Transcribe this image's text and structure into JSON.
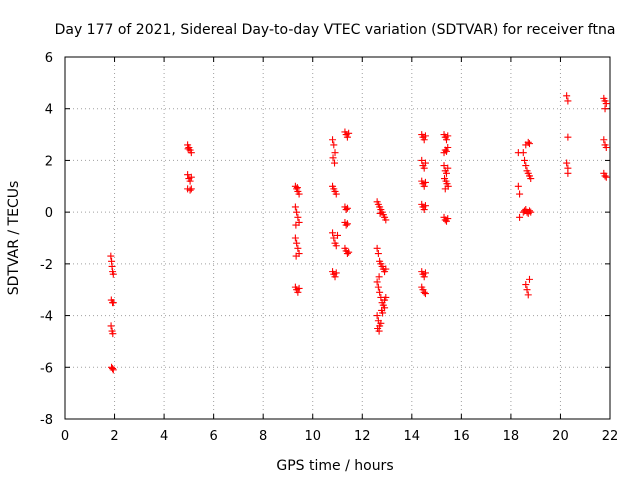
{
  "chart_data": {
    "type": "scatter",
    "title": "Day 177 of 2021, Sidereal Day-to-day VTEC variation (SDTVAR) for receiver ftna",
    "xlabel": "GPS time / hours",
    "ylabel": "SDTVAR / TECUs",
    "xlim": [
      0,
      22
    ],
    "ylim": [
      -8,
      6
    ],
    "xticks": [
      0,
      2,
      4,
      6,
      8,
      10,
      12,
      14,
      16,
      18,
      20,
      22
    ],
    "yticks": [
      -8,
      -6,
      -4,
      -2,
      0,
      2,
      4,
      6
    ],
    "grid": true,
    "marker": "plus",
    "series": [
      {
        "name": "SDTVAR",
        "color": "#ff0000",
        "points": [
          [
            1.85,
            -1.7
          ],
          [
            1.88,
            -1.9
          ],
          [
            1.9,
            -2.1
          ],
          [
            1.92,
            -2.3
          ],
          [
            1.95,
            -2.4
          ],
          [
            1.87,
            -3.4
          ],
          [
            1.92,
            -3.5
          ],
          [
            1.95,
            -3.5
          ],
          [
            1.86,
            -4.4
          ],
          [
            1.9,
            -4.6
          ],
          [
            1.93,
            -4.7
          ],
          [
            1.88,
            -6.0
          ],
          [
            1.92,
            -6.05
          ],
          [
            1.95,
            -6.1
          ],
          [
            4.95,
            2.6
          ],
          [
            5.0,
            2.5
          ],
          [
            5.05,
            2.4
          ],
          [
            5.1,
            2.3
          ],
          [
            4.97,
            2.45
          ],
          [
            4.95,
            1.45
          ],
          [
            5.0,
            1.3
          ],
          [
            5.05,
            1.2
          ],
          [
            5.1,
            1.35
          ],
          [
            4.95,
            0.9
          ],
          [
            5.05,
            0.85
          ],
          [
            5.1,
            0.9
          ],
          [
            9.3,
            1.0
          ],
          [
            9.35,
            0.9
          ],
          [
            9.4,
            0.8
          ],
          [
            9.45,
            0.7
          ],
          [
            9.38,
            0.95
          ],
          [
            9.3,
            0.2
          ],
          [
            9.35,
            0.0
          ],
          [
            9.4,
            -0.2
          ],
          [
            9.45,
            -0.4
          ],
          [
            9.32,
            -0.5
          ],
          [
            9.3,
            -1.0
          ],
          [
            9.35,
            -1.2
          ],
          [
            9.4,
            -1.4
          ],
          [
            9.45,
            -1.6
          ],
          [
            9.33,
            -1.7
          ],
          [
            9.3,
            -2.9
          ],
          [
            9.35,
            -3.0
          ],
          [
            9.4,
            -3.1
          ],
          [
            9.45,
            -2.95
          ],
          [
            10.8,
            2.8
          ],
          [
            10.85,
            2.6
          ],
          [
            10.9,
            2.3
          ],
          [
            10.82,
            2.1
          ],
          [
            10.88,
            1.9
          ],
          [
            10.8,
            1.0
          ],
          [
            10.85,
            0.9
          ],
          [
            10.9,
            0.8
          ],
          [
            10.95,
            0.7
          ],
          [
            10.8,
            -0.8
          ],
          [
            10.85,
            -1.0
          ],
          [
            10.9,
            -1.2
          ],
          [
            10.95,
            -1.3
          ],
          [
            11.0,
            -0.9
          ],
          [
            10.8,
            -2.3
          ],
          [
            10.85,
            -2.4
          ],
          [
            10.9,
            -2.5
          ],
          [
            10.95,
            -2.35
          ],
          [
            11.3,
            3.1
          ],
          [
            11.35,
            3.0
          ],
          [
            11.4,
            2.9
          ],
          [
            11.45,
            3.05
          ],
          [
            11.3,
            0.2
          ],
          [
            11.35,
            0.1
          ],
          [
            11.4,
            0.15
          ],
          [
            11.3,
            -0.4
          ],
          [
            11.35,
            -0.5
          ],
          [
            11.4,
            -0.45
          ],
          [
            11.3,
            -1.4
          ],
          [
            11.35,
            -1.5
          ],
          [
            11.4,
            -1.6
          ],
          [
            11.45,
            -1.55
          ],
          [
            12.6,
            0.4
          ],
          [
            12.65,
            0.3
          ],
          [
            12.7,
            0.2
          ],
          [
            12.75,
            0.1
          ],
          [
            12.8,
            0.0
          ],
          [
            12.85,
            -0.1
          ],
          [
            12.9,
            -0.2
          ],
          [
            12.95,
            -0.3
          ],
          [
            12.72,
            -0.05
          ],
          [
            12.6,
            -1.4
          ],
          [
            12.65,
            -1.6
          ],
          [
            12.7,
            -1.9
          ],
          [
            12.75,
            -2.0
          ],
          [
            12.8,
            -2.1
          ],
          [
            12.85,
            -2.2
          ],
          [
            12.9,
            -2.3
          ],
          [
            12.95,
            -2.2
          ],
          [
            12.68,
            -2.5
          ],
          [
            12.6,
            -2.7
          ],
          [
            12.65,
            -2.9
          ],
          [
            12.7,
            -3.1
          ],
          [
            12.75,
            -3.3
          ],
          [
            12.8,
            -3.5
          ],
          [
            12.85,
            -3.6
          ],
          [
            12.9,
            -3.4
          ],
          [
            12.95,
            -3.3
          ],
          [
            12.78,
            -3.8
          ],
          [
            12.6,
            -4.0
          ],
          [
            12.65,
            -4.2
          ],
          [
            12.7,
            -4.4
          ],
          [
            12.62,
            -4.5
          ],
          [
            12.68,
            -4.6
          ],
          [
            12.75,
            -4.3
          ],
          [
            12.82,
            -3.9
          ],
          [
            12.9,
            -3.7
          ],
          [
            14.4,
            3.0
          ],
          [
            14.45,
            2.9
          ],
          [
            14.5,
            2.8
          ],
          [
            14.55,
            2.95
          ],
          [
            14.4,
            2.0
          ],
          [
            14.45,
            1.8
          ],
          [
            14.5,
            1.7
          ],
          [
            14.55,
            1.9
          ],
          [
            14.4,
            1.2
          ],
          [
            14.45,
            1.1
          ],
          [
            14.5,
            1.0
          ],
          [
            14.55,
            1.15
          ],
          [
            14.4,
            0.3
          ],
          [
            14.45,
            0.2
          ],
          [
            14.5,
            0.1
          ],
          [
            14.55,
            0.25
          ],
          [
            14.4,
            -2.3
          ],
          [
            14.45,
            -2.4
          ],
          [
            14.5,
            -2.5
          ],
          [
            14.55,
            -2.35
          ],
          [
            14.4,
            -2.9
          ],
          [
            14.45,
            -3.0
          ],
          [
            14.5,
            -3.1
          ],
          [
            14.55,
            -3.15
          ],
          [
            15.3,
            3.0
          ],
          [
            15.35,
            2.9
          ],
          [
            15.4,
            2.8
          ],
          [
            15.45,
            2.95
          ],
          [
            15.3,
            2.3
          ],
          [
            15.35,
            2.4
          ],
          [
            15.4,
            2.35
          ],
          [
            15.45,
            2.5
          ],
          [
            15.3,
            1.8
          ],
          [
            15.35,
            1.6
          ],
          [
            15.4,
            1.5
          ],
          [
            15.45,
            1.7
          ],
          [
            15.32,
            1.3
          ],
          [
            15.38,
            1.2
          ],
          [
            15.42,
            1.1
          ],
          [
            15.47,
            1.0
          ],
          [
            15.35,
            0.9
          ],
          [
            15.3,
            -0.2
          ],
          [
            15.35,
            -0.3
          ],
          [
            15.4,
            -0.35
          ],
          [
            15.45,
            -0.25
          ],
          [
            18.3,
            2.3
          ],
          [
            18.3,
            1.0
          ],
          [
            18.35,
            0.7
          ],
          [
            18.35,
            -0.2
          ],
          [
            18.5,
            2.3
          ],
          [
            18.55,
            2.0
          ],
          [
            18.6,
            1.8
          ],
          [
            18.65,
            1.6
          ],
          [
            18.7,
            1.5
          ],
          [
            18.75,
            1.4
          ],
          [
            18.8,
            1.3
          ],
          [
            18.6,
            2.6
          ],
          [
            18.7,
            2.7
          ],
          [
            18.75,
            2.65
          ],
          [
            18.5,
            0.0
          ],
          [
            18.55,
            0.05
          ],
          [
            18.6,
            0.1
          ],
          [
            18.65,
            0.0
          ],
          [
            18.7,
            -0.05
          ],
          [
            18.75,
            0.05
          ],
          [
            18.8,
            0.0
          ],
          [
            18.6,
            -2.8
          ],
          [
            18.65,
            -3.0
          ],
          [
            18.7,
            -3.2
          ],
          [
            18.75,
            -2.6
          ],
          [
            20.25,
            4.5
          ],
          [
            20.3,
            4.3
          ],
          [
            20.3,
            2.9
          ],
          [
            20.25,
            1.9
          ],
          [
            20.3,
            1.7
          ],
          [
            20.3,
            1.5
          ],
          [
            21.75,
            4.4
          ],
          [
            21.8,
            4.3
          ],
          [
            21.85,
            4.2
          ],
          [
            21.8,
            4.0
          ],
          [
            21.75,
            2.8
          ],
          [
            21.8,
            2.6
          ],
          [
            21.85,
            2.5
          ],
          [
            21.75,
            1.5
          ],
          [
            21.8,
            1.4
          ],
          [
            21.85,
            1.35
          ]
        ]
      }
    ]
  }
}
